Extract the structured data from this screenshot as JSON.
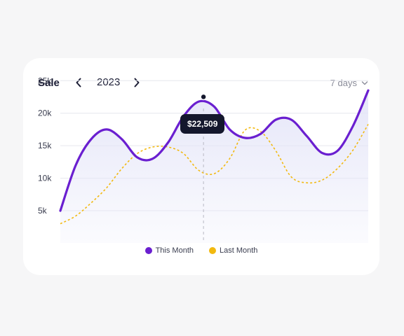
{
  "header": {
    "title": "Sale",
    "year": "2023",
    "range": "7 days"
  },
  "tooltip": {
    "value": "$22,509"
  },
  "colors": {
    "this_month": "#6a1fd0",
    "last_month": "#f2b90f",
    "area": "#e4e5f8"
  },
  "icons": {
    "prev": "chevron-left-icon",
    "next": "chevron-right-icon",
    "range": "chevron-down-icon"
  },
  "chart_data": {
    "type": "line",
    "title": "Sale",
    "x": [
      0,
      1,
      2,
      3,
      4,
      5,
      6,
      7,
      8,
      9,
      10,
      11,
      12,
      13,
      14,
      15,
      16,
      17,
      18,
      19,
      20
    ],
    "yticks": [
      "5k",
      "10k",
      "15k",
      "20k",
      "25k"
    ],
    "ylim": [
      0,
      25000
    ],
    "grid": true,
    "legend": "bottom",
    "highlight": {
      "series": "This Month",
      "x": 9.3,
      "y": 22509
    },
    "series": [
      {
        "name": "This Month",
        "style": "solid",
        "area_fill": true,
        "values": [
          5000,
          12000,
          16000,
          17500,
          16000,
          13200,
          13000,
          15500,
          19500,
          21800,
          21000,
          17500,
          16200,
          16800,
          19000,
          19000,
          16500,
          13900,
          14200,
          18000,
          23500
        ]
      },
      {
        "name": "Last Month",
        "style": "dashed",
        "values": [
          3000,
          4200,
          6200,
          8500,
          11500,
          13800,
          14800,
          14800,
          13800,
          11200,
          10700,
          13000,
          17400,
          17200,
          14200,
          10200,
          9300,
          9700,
          11500,
          14300,
          18300
        ]
      }
    ]
  }
}
